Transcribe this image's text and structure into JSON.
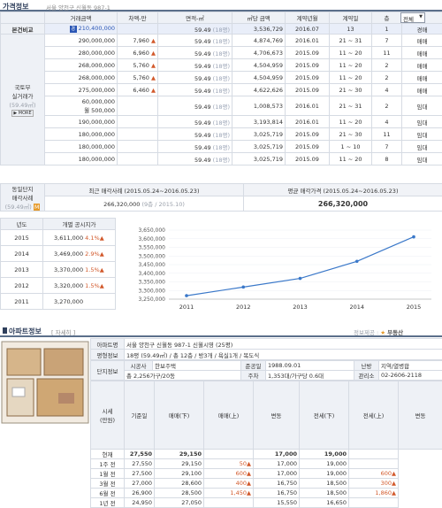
{
  "header": {
    "title": "가격정보",
    "address": "서울 양천구 신월동 987-1"
  },
  "price_table": {
    "headers": [
      "거래금액",
      "차액-만",
      "면적-㎡",
      "㎡당 금액",
      "계약년월",
      "계약일",
      "층"
    ],
    "filter": "전체",
    "compare_label": "본건비교",
    "compare_row": {
      "price": "210,400,000",
      "area": "59.49",
      "area_py": "(18평)",
      "per_m2": "3,536,729",
      "ym": "2016.07",
      "day": "13",
      "floor": "1",
      "type": "경매"
    },
    "molit_label": [
      "국토부",
      "실거래가"
    ],
    "molit_area": "(59.49㎡)",
    "more": "▶ MORE",
    "rows": [
      {
        "price": "290,000,000",
        "diff": "7,960",
        "area": "59.49",
        "area_py": "(18평)",
        "per_m2": "4,874,769",
        "ym": "2016.01",
        "day": "21 ~ 31",
        "floor": "7",
        "type": "매매"
      },
      {
        "price": "280,000,000",
        "diff": "6,960",
        "area": "59.49",
        "area_py": "(18평)",
        "per_m2": "4,706,673",
        "ym": "2015.09",
        "day": "11 ~ 20",
        "floor": "11",
        "type": "매매"
      },
      {
        "price": "268,000,000",
        "diff": "5,760",
        "area": "59.49",
        "area_py": "(18평)",
        "per_m2": "4,504,959",
        "ym": "2015.09",
        "day": "11 ~ 20",
        "floor": "2",
        "type": "매매"
      },
      {
        "price": "268,000,000",
        "diff": "5,760",
        "area": "59.49",
        "area_py": "(18평)",
        "per_m2": "4,504,959",
        "ym": "2015.09",
        "day": "11 ~ 20",
        "floor": "2",
        "type": "매매"
      },
      {
        "price": "275,000,000",
        "diff": "6,460",
        "area": "59.49",
        "area_py": "(18평)",
        "per_m2": "4,622,626",
        "ym": "2015.09",
        "day": "21 ~ 30",
        "floor": "4",
        "type": "매매"
      },
      {
        "price": "60,000,000",
        "price2": "월 500,000",
        "diff": "",
        "area": "59.49",
        "area_py": "(18평)",
        "per_m2": "1,008,573",
        "ym": "2016.01",
        "day": "21 ~ 31",
        "floor": "2",
        "type": "임대"
      },
      {
        "price": "190,000,000",
        "diff": "",
        "area": "59.49",
        "area_py": "(18평)",
        "per_m2": "3,193,814",
        "ym": "2016.01",
        "day": "11 ~ 20",
        "floor": "4",
        "type": "임대"
      },
      {
        "price": "180,000,000",
        "diff": "",
        "area": "59.49",
        "area_py": "(18평)",
        "per_m2": "3,025,719",
        "ym": "2015.09",
        "day": "21 ~ 30",
        "floor": "11",
        "type": "임대"
      },
      {
        "price": "180,000,000",
        "diff": "",
        "area": "59.49",
        "area_py": "(18평)",
        "per_m2": "3,025,719",
        "ym": "2015.09",
        "day": "1 ~ 10",
        "floor": "7",
        "type": "임대"
      },
      {
        "price": "180,000,000",
        "diff": "",
        "area": "59.49",
        "area_py": "(18평)",
        "per_m2": "3,025,719",
        "ym": "2015.09",
        "day": "11 ~ 20",
        "floor": "8",
        "type": "임대"
      }
    ]
  },
  "same": {
    "label": [
      "동일단지",
      "매각사례"
    ],
    "area": "(59.49㎡)",
    "recent_title": "최근 매각사례 (2015.05.24~2016.05.23)",
    "recent_value": "266,320,000",
    "recent_sub": "(9층 / 2015.10)",
    "avg_title": "평균 매각가격 (2015.05.24~2016.05.23)",
    "avg_value": "266,320,000"
  },
  "official": {
    "headers": [
      "년도",
      "개별 공시지가"
    ],
    "rows": [
      {
        "year": "2015",
        "price": "3,611,000",
        "pct": "4.1%"
      },
      {
        "year": "2014",
        "price": "3,469,000",
        "pct": "2.9%"
      },
      {
        "year": "2013",
        "price": "3,370,000",
        "pct": "1.5%"
      },
      {
        "year": "2012",
        "price": "3,320,000",
        "pct": "1.5%"
      },
      {
        "year": "2011",
        "price": "3,270,000",
        "pct": ""
      }
    ]
  },
  "chart_data": {
    "type": "line",
    "x": [
      "2011",
      "2012",
      "2013",
      "2014",
      "2015"
    ],
    "y": [
      3270000,
      3320000,
      3370000,
      3469000,
      3611000
    ],
    "yticks": [
      "3,650,000",
      "3,600,000",
      "3,550,000",
      "3,500,000",
      "3,450,000",
      "3,400,000",
      "3,350,000",
      "3,300,000",
      "3,250,000"
    ],
    "ylim": [
      3250000,
      3650000
    ],
    "color": "#3a78c9"
  },
  "footer_provider": {
    "label": "정보제공 :",
    "brand": "부동산"
  },
  "apt": {
    "title": "아파트정보",
    "detail": "[ 자세히 ]",
    "rows": [
      {
        "k": "아파트명",
        "v": "서울 양천구 신월동 987-1 신월시영 (25평)"
      },
      {
        "k": "평형정보",
        "v": "18평 (59.49㎡) / 총 12층 / 방3개 / 욕실1개 / 복도식"
      },
      {
        "k": "시공사",
        "v": "한보주택",
        "k2": "준공일",
        "v2": "1988.09.01",
        "k3": "난방",
        "v3": "지역/열병합"
      },
      {
        "k": "",
        "v": "총 2,256가구/20동",
        "k2": "주차",
        "v2": "1,353대/가구당 0.6대",
        "k3": "관리소",
        "v3": "02-2606-2118"
      }
    ],
    "danji_label": "단지정보",
    "sise_label": [
      "시세",
      "(만원)"
    ],
    "sise_headers": [
      "기준일",
      "매매(下)",
      "매매(上)",
      "변동",
      "전세(下)",
      "전세(上)",
      "변동"
    ],
    "sise_rows": [
      {
        "d": "현재",
        "a": "27,550",
        "b": "29,150",
        "c": "",
        "e": "17,000",
        "f": "19,000",
        "g": ""
      },
      {
        "d": "1주 전",
        "a": "27,550",
        "b": "29,150",
        "c": "50",
        "e": "17,000",
        "f": "19,000",
        "g": ""
      },
      {
        "d": "1월 전",
        "a": "27,500",
        "b": "29,100",
        "c": "600",
        "e": "17,000",
        "f": "19,000",
        "g": "600"
      },
      {
        "d": "3월 전",
        "a": "27,000",
        "b": "28,600",
        "c": "400",
        "e": "16,750",
        "f": "18,500",
        "g": "300"
      },
      {
        "d": "6월 전",
        "a": "26,900",
        "b": "28,500",
        "c": "1,450",
        "e": "16,750",
        "f": "18,500",
        "g": "1,860"
      },
      {
        "d": "1년 전",
        "a": "24,950",
        "b": "27,050",
        "c": "",
        "e": "15,550",
        "f": "16,650",
        "g": ""
      }
    ]
  }
}
